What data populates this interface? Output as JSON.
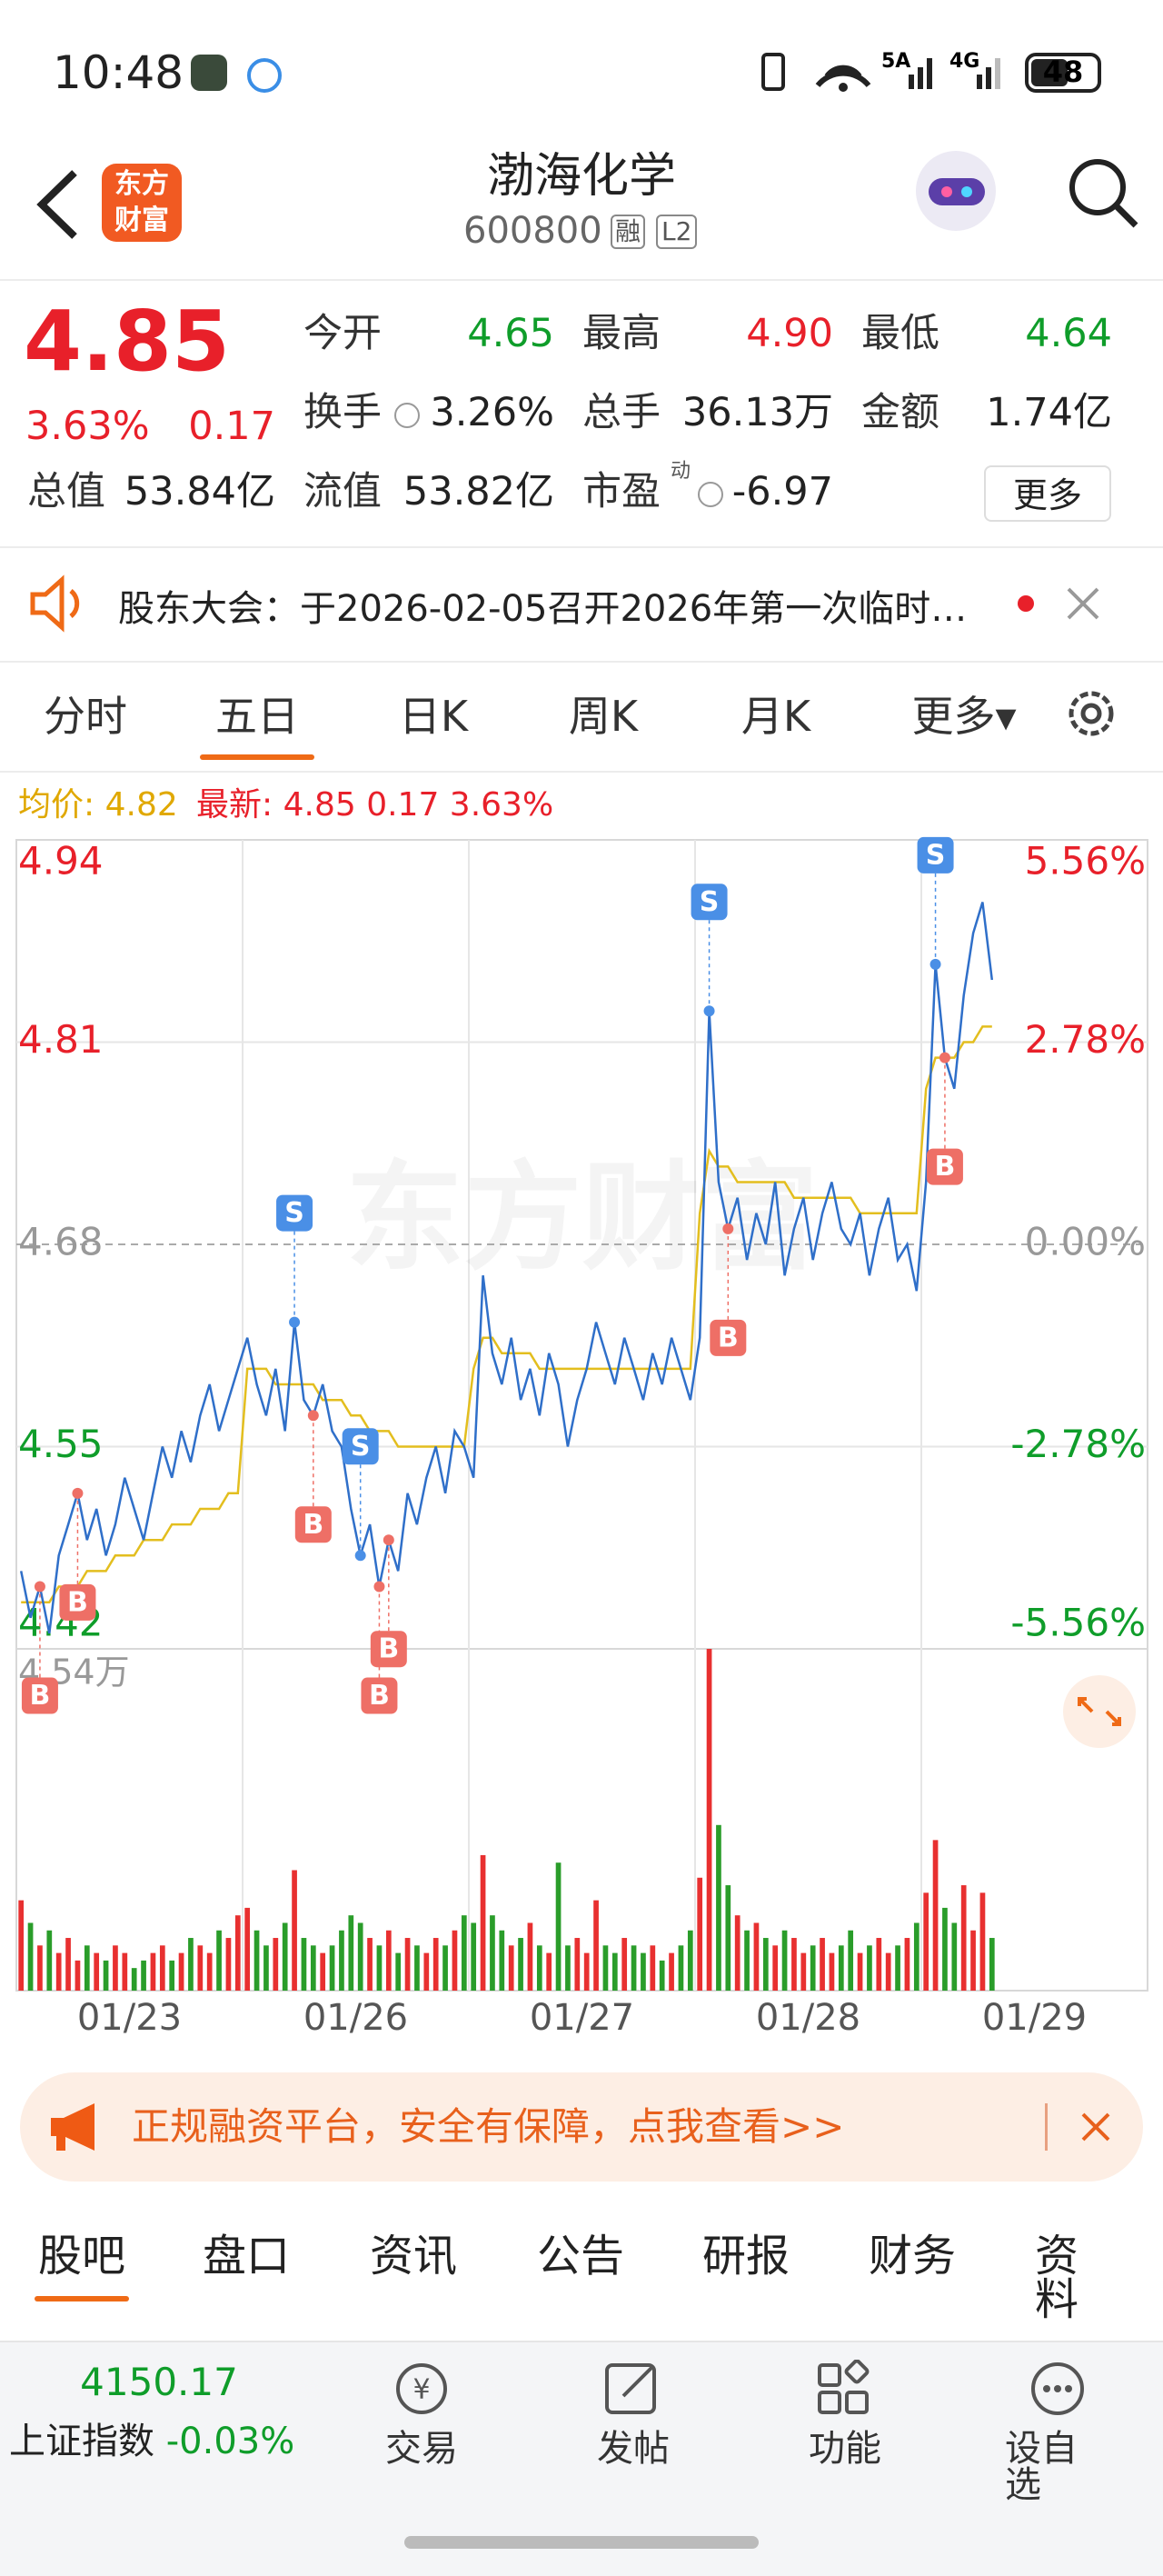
{
  "status_bar": {
    "time": "10:48",
    "network": [
      "5A",
      "4G"
    ],
    "battery": "48"
  },
  "header": {
    "logo": [
      "东方",
      "财富"
    ],
    "title": "渤海化学",
    "code": "600800",
    "tags": [
      "融",
      "L2"
    ]
  },
  "quote": {
    "price": "4.85",
    "change_pct": "3.63%",
    "change": "0.17",
    "fields": [
      {
        "label": "今开",
        "value": "4.65"
      },
      {
        "label": "最高",
        "value": "4.90"
      },
      {
        "label": "最低",
        "value": "4.64"
      },
      {
        "label": "换手",
        "value": "3.26%"
      },
      {
        "label": "总手",
        "value": "36.13万"
      },
      {
        "label": "金额",
        "value": "1.74亿"
      },
      {
        "label": "总值",
        "value": "53.84亿"
      },
      {
        "label": "流值",
        "value": "53.82亿"
      },
      {
        "label": "市盈",
        "sup": "动",
        "value": "-6.97"
      }
    ],
    "more": "更多"
  },
  "notice": "股东大会：于2026-02-05召开2026年第一次临时…",
  "tabs": [
    "分时",
    "五日",
    "日K",
    "周K",
    "月K",
    "更多▾"
  ],
  "chart": {
    "type": "line",
    "legend": {
      "avg_label": "均价:",
      "avg": "4.82",
      "latest_label": "最新:",
      "latest": "4.85 0.17 3.63%"
    },
    "watermark": "东方财富",
    "categories": [
      "01/23",
      "01/26",
      "01/27",
      "01/28",
      "01/29"
    ],
    "xlim": [
      0,
      120
    ],
    "ylim": [
      4.42,
      4.94
    ],
    "yticks": [
      4.94,
      4.81,
      4.68,
      4.55,
      4.42
    ],
    "y2lim": [
      -5.56,
      5.56
    ],
    "y2ticks": [
      {
        "value": 5.56,
        "label": "5.56%"
      },
      {
        "value": 2.78,
        "label": "2.78%"
      },
      {
        "value": 0,
        "label": "0.00%"
      },
      {
        "value": -2.78,
        "label": "-2.78%"
      },
      {
        "value": -5.56,
        "label": "-5.56%"
      }
    ],
    "price_color": "#2f6fc9",
    "avg_color": "#e3be1e",
    "price": [
      4.47,
      4.44,
      4.46,
      4.43,
      4.48,
      4.5,
      4.52,
      4.49,
      4.51,
      4.48,
      4.5,
      4.53,
      4.51,
      4.49,
      4.52,
      4.55,
      4.53,
      4.56,
      4.54,
      4.57,
      4.59,
      4.56,
      4.58,
      4.6,
      4.62,
      4.59,
      4.57,
      4.6,
      4.56,
      4.63,
      4.58,
      4.57,
      4.59,
      4.56,
      4.55,
      4.51,
      4.48,
      4.5,
      4.46,
      4.49,
      4.47,
      4.52,
      4.5,
      4.53,
      4.55,
      4.52,
      4.56,
      4.55,
      4.53,
      4.66,
      4.61,
      4.59,
      4.62,
      4.58,
      4.6,
      4.57,
      4.61,
      4.59,
      4.55,
      4.58,
      4.6,
      4.63,
      4.61,
      4.59,
      4.62,
      4.6,
      4.58,
      4.61,
      4.59,
      4.62,
      4.6,
      4.58,
      4.62,
      4.83,
      4.72,
      4.69,
      4.71,
      4.67,
      4.7,
      4.68,
      4.72,
      4.66,
      4.69,
      4.71,
      4.67,
      4.7,
      4.72,
      4.69,
      4.68,
      4.7,
      4.66,
      4.69,
      4.71,
      4.67,
      4.68,
      4.65,
      4.72,
      4.86,
      4.8,
      4.78,
      4.84,
      4.88,
      4.9,
      4.85
    ],
    "avg": [
      4.45,
      4.45,
      4.45,
      4.45,
      4.46,
      4.46,
      4.46,
      4.47,
      4.47,
      4.47,
      4.48,
      4.48,
      4.48,
      4.49,
      4.49,
      4.49,
      4.5,
      4.5,
      4.5,
      4.51,
      4.51,
      4.51,
      4.52,
      4.52,
      4.6,
      4.6,
      4.6,
      4.59,
      4.59,
      4.59,
      4.59,
      4.59,
      4.58,
      4.58,
      4.58,
      4.57,
      4.57,
      4.56,
      4.56,
      4.56,
      4.55,
      4.55,
      4.55,
      4.55,
      4.55,
      4.55,
      4.55,
      4.55,
      4.6,
      4.62,
      4.62,
      4.61,
      4.61,
      4.61,
      4.61,
      4.6,
      4.6,
      4.6,
      4.6,
      4.6,
      4.6,
      4.6,
      4.6,
      4.6,
      4.6,
      4.6,
      4.6,
      4.6,
      4.6,
      4.6,
      4.6,
      4.6,
      4.7,
      4.74,
      4.73,
      4.73,
      4.72,
      4.72,
      4.72,
      4.72,
      4.72,
      4.72,
      4.71,
      4.71,
      4.71,
      4.71,
      4.71,
      4.71,
      4.71,
      4.7,
      4.7,
      4.7,
      4.7,
      4.7,
      4.7,
      4.7,
      4.78,
      4.8,
      4.8,
      4.8,
      4.81,
      4.81,
      4.82,
      4.82
    ],
    "markers": [
      {
        "label": "B",
        "x": 2
      },
      {
        "label": "B",
        "x": 6
      },
      {
        "label": "S",
        "x": 29
      },
      {
        "label": "B",
        "x": 31
      },
      {
        "label": "S",
        "x": 36
      },
      {
        "label": "B",
        "x": 38
      },
      {
        "label": "B",
        "x": 39
      },
      {
        "label": "S",
        "x": 73
      },
      {
        "label": "B",
        "x": 75
      },
      {
        "label": "S",
        "x": 97
      },
      {
        "label": "B",
        "x": 98
      }
    ],
    "volume": {
      "ylim": [
        0,
        4.54
      ],
      "yticks": [
        {
          "value": 4.54,
          "label": "4.54万"
        }
      ],
      "values": [
        1.2,
        0.9,
        0.6,
        0.8,
        0.5,
        0.7,
        0.4,
        0.6,
        0.5,
        0.4,
        0.6,
        0.5,
        0.3,
        0.4,
        0.5,
        0.6,
        0.4,
        0.5,
        0.7,
        0.6,
        0.5,
        0.8,
        0.7,
        1.0,
        1.1,
        0.8,
        0.6,
        0.7,
        0.9,
        1.6,
        0.7,
        0.6,
        0.5,
        0.6,
        0.8,
        1.0,
        0.9,
        0.7,
        0.6,
        0.8,
        0.5,
        0.7,
        0.6,
        0.5,
        0.7,
        0.6,
        0.8,
        1.0,
        0.9,
        1.8,
        1.0,
        0.8,
        0.6,
        0.7,
        0.9,
        0.6,
        0.5,
        1.7,
        0.6,
        0.7,
        0.5,
        1.2,
        0.6,
        0.5,
        0.7,
        0.6,
        0.5,
        0.6,
        0.4,
        0.5,
        0.6,
        0.8,
        1.5,
        4.54,
        2.2,
        1.4,
        1.0,
        0.8,
        0.9,
        0.7,
        0.6,
        0.8,
        0.7,
        0.5,
        0.6,
        0.7,
        0.5,
        0.6,
        0.8,
        0.5,
        0.6,
        0.7,
        0.5,
        0.6,
        0.7,
        0.9,
        1.3,
        2.0,
        1.1,
        0.9,
        1.4,
        0.8,
        1.3,
        0.7
      ]
    }
  },
  "banner": "正规融资平台，安全有保障，点我查看>>",
  "bottom_tabs": [
    "股吧",
    "盘口",
    "资讯",
    "公告",
    "研报",
    "财务",
    "资料"
  ],
  "footer": {
    "index_value": "4150.17",
    "index_name": "上证指数",
    "index_change": "-0.03%",
    "actions": [
      "交易",
      "发帖",
      "功能",
      "设自选"
    ]
  }
}
